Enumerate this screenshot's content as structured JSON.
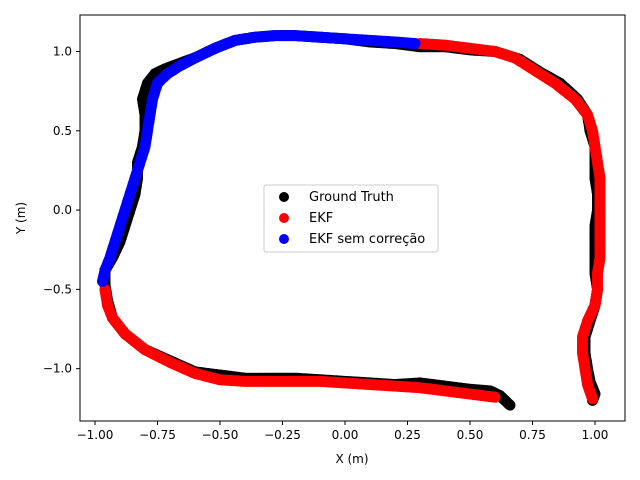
{
  "chart_data": {
    "type": "scatter",
    "xlabel": "X (m)",
    "ylabel": "Y (m)",
    "xlim": [
      -1.06,
      1.12
    ],
    "ylim": [
      -1.33,
      1.23
    ],
    "xticks": [
      -1.0,
      -0.75,
      -0.5,
      -0.25,
      0.0,
      0.25,
      0.5,
      0.75,
      1.0
    ],
    "xtick_labels": [
      "−1.00",
      "−0.75",
      "−0.50",
      "−0.25",
      "0.00",
      "0.25",
      "0.50",
      "0.75",
      "1.00"
    ],
    "yticks": [
      -1.0,
      -0.5,
      0.0,
      0.5,
      1.0
    ],
    "ytick_labels": [
      "−1.0",
      "−0.5",
      "0.0",
      "0.5",
      "1.0"
    ],
    "grid": false,
    "legend_position": "center",
    "series": [
      {
        "name": "Ground Truth",
        "color": "#000000",
        "points": [
          [
            0.66,
            -1.23
          ],
          [
            0.62,
            -1.17
          ],
          [
            0.58,
            -1.14
          ],
          [
            0.5,
            -1.13
          ],
          [
            0.4,
            -1.11
          ],
          [
            0.3,
            -1.09
          ],
          [
            0.2,
            -1.1
          ],
          [
            0.1,
            -1.09
          ],
          [
            0.0,
            -1.08
          ],
          [
            -0.1,
            -1.07
          ],
          [
            -0.2,
            -1.06
          ],
          [
            -0.3,
            -1.06
          ],
          [
            -0.4,
            -1.06
          ],
          [
            -0.5,
            -1.04
          ],
          [
            -0.6,
            -1.02
          ],
          [
            -0.7,
            -0.95
          ],
          [
            -0.8,
            -0.88
          ],
          [
            -0.88,
            -0.78
          ],
          [
            -0.93,
            -0.68
          ],
          [
            -0.95,
            -0.57
          ],
          [
            -0.96,
            -0.47
          ],
          [
            -0.96,
            -0.38
          ],
          [
            -0.93,
            -0.3
          ],
          [
            -0.9,
            -0.2
          ],
          [
            -0.88,
            -0.1
          ],
          [
            -0.86,
            0.0
          ],
          [
            -0.84,
            0.1
          ],
          [
            -0.83,
            0.2
          ],
          [
            -0.83,
            0.3
          ],
          [
            -0.81,
            0.4
          ],
          [
            -0.8,
            0.5
          ],
          [
            -0.8,
            0.6
          ],
          [
            -0.81,
            0.7
          ],
          [
            -0.79,
            0.8
          ],
          [
            -0.76,
            0.86
          ],
          [
            -0.72,
            0.89
          ],
          [
            -0.67,
            0.92
          ],
          [
            -0.6,
            0.96
          ],
          [
            -0.52,
            1.02
          ],
          [
            -0.44,
            1.07
          ],
          [
            -0.36,
            1.09
          ],
          [
            -0.28,
            1.1
          ],
          [
            -0.2,
            1.1
          ],
          [
            -0.1,
            1.09
          ],
          [
            0.0,
            1.08
          ],
          [
            0.1,
            1.06
          ],
          [
            0.2,
            1.05
          ],
          [
            0.3,
            1.03
          ],
          [
            0.4,
            1.03
          ],
          [
            0.5,
            1.01
          ],
          [
            0.6,
            1.0
          ],
          [
            0.7,
            0.95
          ],
          [
            0.78,
            0.87
          ],
          [
            0.86,
            0.8
          ],
          [
            0.93,
            0.7
          ],
          [
            0.97,
            0.6
          ],
          [
            0.98,
            0.5
          ],
          [
            1.0,
            0.4
          ],
          [
            1.0,
            0.3
          ],
          [
            1.0,
            0.2
          ],
          [
            1.01,
            0.1
          ],
          [
            1.01,
            0.0
          ],
          [
            1.0,
            -0.1
          ],
          [
            1.0,
            -0.2
          ],
          [
            1.0,
            -0.3
          ],
          [
            1.0,
            -0.4
          ],
          [
            1.01,
            -0.5
          ],
          [
            1.0,
            -0.6
          ],
          [
            0.98,
            -0.7
          ],
          [
            0.96,
            -0.8
          ],
          [
            0.96,
            -0.9
          ],
          [
            0.97,
            -1.0
          ],
          [
            0.98,
            -1.08
          ],
          [
            1.0,
            -1.16
          ],
          [
            0.99,
            -1.2
          ]
        ]
      },
      {
        "name": "EKF",
        "color": "#ff0000",
        "points": [
          [
            0.6,
            -1.18
          ],
          [
            0.5,
            -1.16
          ],
          [
            0.4,
            -1.14
          ],
          [
            0.3,
            -1.12
          ],
          [
            0.2,
            -1.11
          ],
          [
            0.1,
            -1.1
          ],
          [
            0.0,
            -1.09
          ],
          [
            -0.1,
            -1.08
          ],
          [
            -0.2,
            -1.08
          ],
          [
            -0.3,
            -1.08
          ],
          [
            -0.4,
            -1.08
          ],
          [
            -0.5,
            -1.07
          ],
          [
            -0.6,
            -1.03
          ],
          [
            -0.7,
            -0.96
          ],
          [
            -0.8,
            -0.88
          ],
          [
            -0.88,
            -0.78
          ],
          [
            -0.93,
            -0.68
          ],
          [
            -0.95,
            -0.6
          ],
          [
            -0.96,
            -0.5
          ],
          [
            0.3,
            1.05
          ],
          [
            0.4,
            1.04
          ],
          [
            0.5,
            1.02
          ],
          [
            0.6,
            1.0
          ],
          [
            0.68,
            0.96
          ],
          [
            0.76,
            0.88
          ],
          [
            0.84,
            0.8
          ],
          [
            0.92,
            0.7
          ],
          [
            0.97,
            0.6
          ],
          [
            0.99,
            0.5
          ],
          [
            1.0,
            0.4
          ],
          [
            1.01,
            0.3
          ],
          [
            1.02,
            0.2
          ],
          [
            1.02,
            0.1
          ],
          [
            1.02,
            0.0
          ],
          [
            1.02,
            -0.1
          ],
          [
            1.02,
            -0.2
          ],
          [
            1.02,
            -0.3
          ],
          [
            1.01,
            -0.4
          ],
          [
            1.01,
            -0.5
          ],
          [
            1.0,
            -0.6
          ],
          [
            0.97,
            -0.7
          ],
          [
            0.95,
            -0.8
          ],
          [
            0.95,
            -0.9
          ],
          [
            0.96,
            -1.0
          ],
          [
            0.97,
            -1.1
          ],
          [
            0.99,
            -1.19
          ]
        ]
      },
      {
        "name": "EKF sem correção",
        "color": "#0000ff",
        "points": [
          [
            -0.97,
            -0.45
          ],
          [
            -0.96,
            -0.38
          ],
          [
            -0.94,
            -0.3
          ],
          [
            -0.92,
            -0.2
          ],
          [
            -0.9,
            -0.1
          ],
          [
            -0.88,
            0.0
          ],
          [
            -0.86,
            0.1
          ],
          [
            -0.84,
            0.2
          ],
          [
            -0.82,
            0.3
          ],
          [
            -0.8,
            0.4
          ],
          [
            -0.79,
            0.5
          ],
          [
            -0.78,
            0.6
          ],
          [
            -0.77,
            0.7
          ],
          [
            -0.75,
            0.8
          ],
          [
            -0.71,
            0.86
          ],
          [
            -0.66,
            0.91
          ],
          [
            -0.6,
            0.96
          ],
          [
            -0.52,
            1.02
          ],
          [
            -0.44,
            1.07
          ],
          [
            -0.36,
            1.09
          ],
          [
            -0.28,
            1.1
          ],
          [
            -0.2,
            1.1
          ],
          [
            -0.1,
            1.09
          ],
          [
            0.0,
            1.08
          ],
          [
            0.1,
            1.07
          ],
          [
            0.2,
            1.06
          ],
          [
            0.28,
            1.05
          ]
        ]
      }
    ]
  }
}
